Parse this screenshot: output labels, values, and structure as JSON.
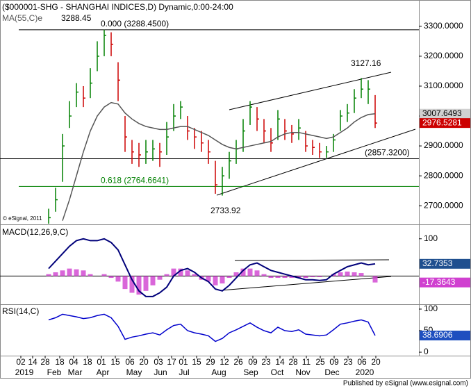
{
  "chart_data": [
    {
      "type": "ohlc",
      "title": "($000001-SHG - SHANGHAI INDICES,D) Dynamic,0:00-24:00",
      "subtitle": "MA(55,C)e",
      "footnote": "© eSignal, 2011",
      "high": [
        2690,
        2760,
        2940,
        3050,
        3110,
        3100,
        3160,
        3250,
        3288.45,
        3280,
        3180,
        3000,
        2920,
        2910,
        2920,
        2920,
        2910,
        2980,
        3040,
        3050,
        3000,
        2960,
        2950,
        2920,
        2850,
        2830,
        2880,
        2920,
        2990,
        3050,
        3030,
        2990,
        2960,
        3020,
        2990,
        2970,
        2990,
        2950,
        2920,
        2910,
        2900,
        2940,
        3020,
        3040,
        3090,
        3127.16,
        3120,
        3070
      ],
      "low": [
        2640,
        2680,
        2780,
        2960,
        3030,
        3030,
        3060,
        3150,
        3200,
        3200,
        3050,
        2880,
        2840,
        2830,
        2840,
        2850,
        2830,
        2870,
        2950,
        2990,
        2920,
        2890,
        2880,
        2840,
        2740,
        2733.92,
        2790,
        2840,
        2880,
        2970,
        2950,
        2910,
        2880,
        2920,
        2920,
        2910,
        2920,
        2880,
        2870,
        2860,
        2860,
        2880,
        2950,
        2980,
        3010,
        3060,
        3040,
        2960
      ],
      "close": [
        2660,
        2720,
        2900,
        3000,
        3080,
        3060,
        3110,
        3200,
        3270,
        3240,
        3120,
        2930,
        2880,
        2870,
        2880,
        2890,
        2880,
        2930,
        3000,
        3030,
        2950,
        2930,
        2910,
        2880,
        2770,
        2800,
        2850,
        2890,
        2950,
        3030,
        2990,
        2950,
        2910,
        2990,
        2950,
        2940,
        2960,
        2900,
        2895,
        2880,
        2880,
        2920,
        3000,
        3010,
        3060,
        3090,
        3090,
        2976.5281
      ],
      "ma": [
        null,
        null,
        2650,
        2720,
        2800,
        2880,
        2950,
        3000,
        3030,
        3045,
        3040,
        3010,
        2990,
        2975,
        2965,
        2960,
        2955,
        2955,
        2960,
        2965,
        2965,
        2955,
        2945,
        2935,
        2920,
        2905,
        2895,
        2890,
        2895,
        2900,
        2905,
        2910,
        2915,
        2930,
        2940,
        2945,
        2945,
        2940,
        2935,
        2930,
        2925,
        2930,
        2945,
        2960,
        2980,
        2995,
        3005,
        3007.6493
      ],
      "ma_color": "#555555",
      "up_color": "#008000",
      "down_color": "#cc0000",
      "ylim": [
        2640,
        3388
      ],
      "yticks": [
        {
          "value": 2700,
          "label": "2700.0000"
        },
        {
          "value": 2800,
          "label": "2800.0000"
        },
        {
          "value": 2900,
          "label": "2900.0000"
        },
        {
          "value": 3000,
          "label": "3000.0000"
        },
        {
          "value": 3100,
          "label": "3100.0000"
        },
        {
          "value": 3200,
          "label": "3200.0000"
        },
        {
          "value": 3300,
          "label": "3300.0000"
        }
      ],
      "annotations": [
        {
          "label": "0.000 (3288.4500)",
          "value": 3288.45,
          "color": "#000000"
        },
        {
          "label": "0.618 (2764.6641)",
          "value": 2764.6641,
          "color": "#008000"
        },
        {
          "label": "(2857.3200)",
          "value": 2857.32,
          "color": "#000000"
        }
      ]
    },
    {
      "type": "macd",
      "title": "MACD(12,26,9,C)",
      "macd": [
        20,
        40,
        60,
        80,
        95,
        100,
        95,
        95,
        100,
        90,
        70,
        30,
        -10,
        -40,
        -55,
        -55,
        -45,
        -30,
        0,
        15,
        20,
        10,
        -5,
        -15,
        -35,
        -40,
        -25,
        -5,
        15,
        30,
        35,
        25,
        15,
        10,
        5,
        0,
        -5,
        -10,
        -10,
        -12,
        -10,
        5,
        15,
        25,
        30,
        35,
        30,
        32.7353
      ],
      "hist": [
        5,
        10,
        15,
        20,
        18,
        15,
        5,
        0,
        5,
        -5,
        -15,
        -35,
        -45,
        -50,
        -40,
        -25,
        -10,
        5,
        20,
        20,
        15,
        5,
        -10,
        -15,
        -25,
        -20,
        -5,
        10,
        20,
        20,
        15,
        5,
        -5,
        -5,
        -5,
        -5,
        -5,
        -5,
        -3,
        -3,
        0,
        5,
        10,
        12,
        10,
        8,
        0,
        -17.3643
      ],
      "macd_color": "#00007a",
      "hist_color": "#d040d0",
      "ylim": [
        -74,
        135
      ],
      "yticks": [
        100
      ]
    },
    {
      "type": "rsi",
      "title": "RSI(14,C)",
      "values": [
        75,
        80,
        88,
        85,
        82,
        78,
        80,
        85,
        88,
        80,
        60,
        30,
        35,
        38,
        42,
        45,
        40,
        52,
        62,
        65,
        50,
        45,
        42,
        38,
        25,
        32,
        45,
        52,
        60,
        68,
        58,
        50,
        45,
        58,
        50,
        48,
        52,
        42,
        40,
        38,
        40,
        52,
        65,
        68,
        72,
        75,
        70,
        38.6906
      ],
      "color": "#0000cc",
      "ylim": [
        -8,
        108
      ],
      "yticks": [
        100,
        50,
        0
      ]
    }
  ],
  "x_axis": {
    "days": [
      "02",
      "14",
      "28",
      "18",
      "04",
      "18",
      "01",
      "15",
      "06",
      "20",
      "03",
      "17",
      "01",
      "15",
      "29",
      "12",
      "26",
      "09",
      "23",
      "14",
      "28",
      "11",
      "25",
      "09",
      "23",
      "06",
      "20"
    ],
    "months": [
      "2019",
      "Feb",
      "Mar",
      "Apr",
      "May",
      "Jun",
      "Jul",
      "Aug",
      "Sep",
      "Oct",
      "Nov",
      "Dec",
      "2020"
    ]
  },
  "footer": "Published by eSignal (www.esignal.com)"
}
